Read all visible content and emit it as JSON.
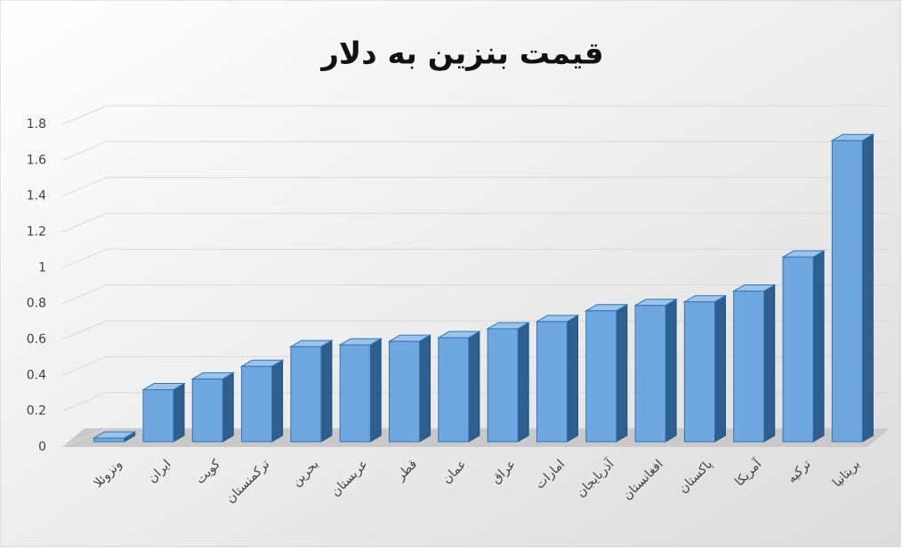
{
  "chart_data": {
    "type": "bar3d",
    "title": "قیمت بنزین به دلار",
    "categories": [
      "ونزوئلا",
      "ایران",
      "کویت",
      "ترکمنستان",
      "بحرین",
      "عربستان",
      "قطر",
      "عمان",
      "عراق",
      "امارات",
      "آذربایجان",
      "افغانستان",
      "پاکستان",
      "آمریکا",
      "ترکیه",
      "بریتانیا"
    ],
    "values": [
      0.02,
      0.29,
      0.35,
      0.42,
      0.53,
      0.54,
      0.56,
      0.58,
      0.63,
      0.67,
      0.73,
      0.76,
      0.78,
      0.84,
      1.03,
      1.68
    ],
    "color": "#6fa8e0",
    "ylim": [
      0,
      1.8
    ],
    "yticks": [
      0,
      0.2,
      0.4,
      0.6,
      0.8,
      1,
      1.2,
      1.4,
      1.6,
      1.8
    ],
    "grid": true
  }
}
